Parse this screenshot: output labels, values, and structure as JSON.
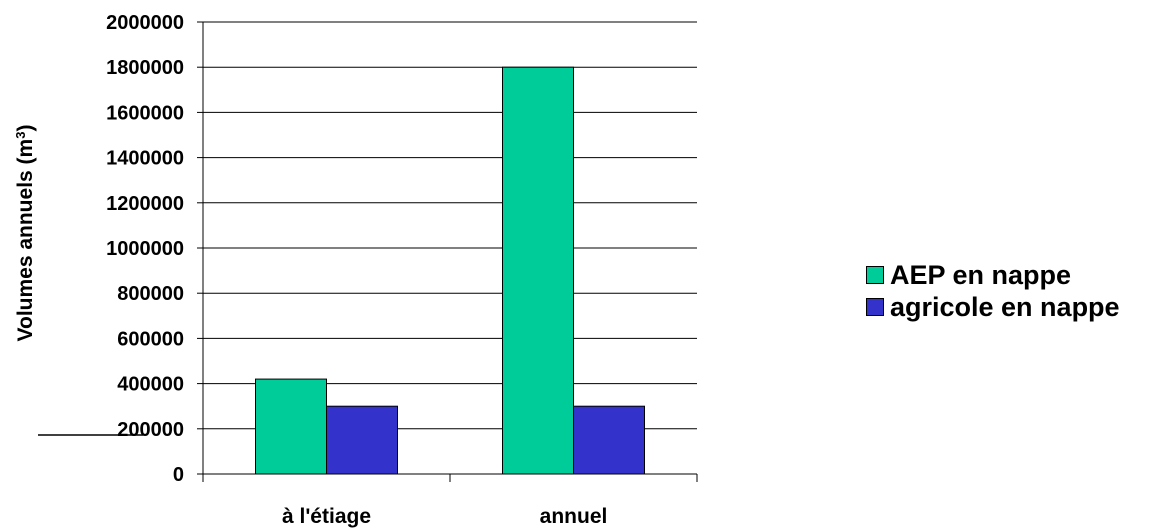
{
  "chart_data": {
    "type": "bar",
    "categories": [
      "à l'étiage",
      "annuel"
    ],
    "series": [
      {
        "name": "AEP en nappe",
        "values": [
          420000,
          1800000
        ],
        "color": "#00CC99"
      },
      {
        "name": "agricole en nappe",
        "values": [
          300000,
          300000
        ],
        "color": "#3333CC"
      }
    ],
    "ylabel": "Volumes annuels (m",
    "ylabel_sup": "3",
    "ylabel_close": ")",
    "ylim": [
      0,
      2000000
    ],
    "yticks": [
      "0",
      "200000",
      "400000",
      "600000",
      "800000",
      "1000000",
      "1200000",
      "1400000",
      "1600000",
      "1800000",
      "2000000"
    ],
    "grid": true,
    "legend_position": "right"
  }
}
